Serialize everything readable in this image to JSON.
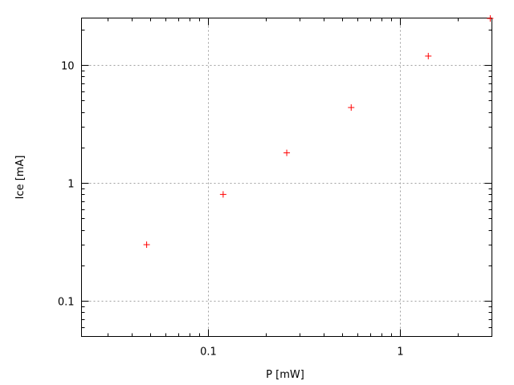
{
  "chart_data": {
    "type": "scatter",
    "title": "",
    "xlabel": "P [mW]",
    "ylabel": "Ice [mA]",
    "xscale": "log",
    "yscale": "log",
    "xlim": [
      0.022,
      3
    ],
    "ylim": [
      0.05,
      25
    ],
    "grid": true,
    "x_ticks": [
      {
        "value": 0.1,
        "label": "0.1"
      },
      {
        "value": 1,
        "label": "1"
      }
    ],
    "y_ticks": [
      {
        "value": 0.1,
        "label": "0.1"
      },
      {
        "value": 1,
        "label": "1"
      },
      {
        "value": 10,
        "label": "10"
      }
    ],
    "marker": "plus",
    "series": [
      {
        "color": "#ff0000",
        "x": [
          0.048,
          0.12,
          0.257,
          0.556,
          1.4,
          2.94
        ],
        "y": [
          0.3,
          0.8,
          1.8,
          4.36,
          11.9,
          24.8
        ]
      }
    ]
  }
}
